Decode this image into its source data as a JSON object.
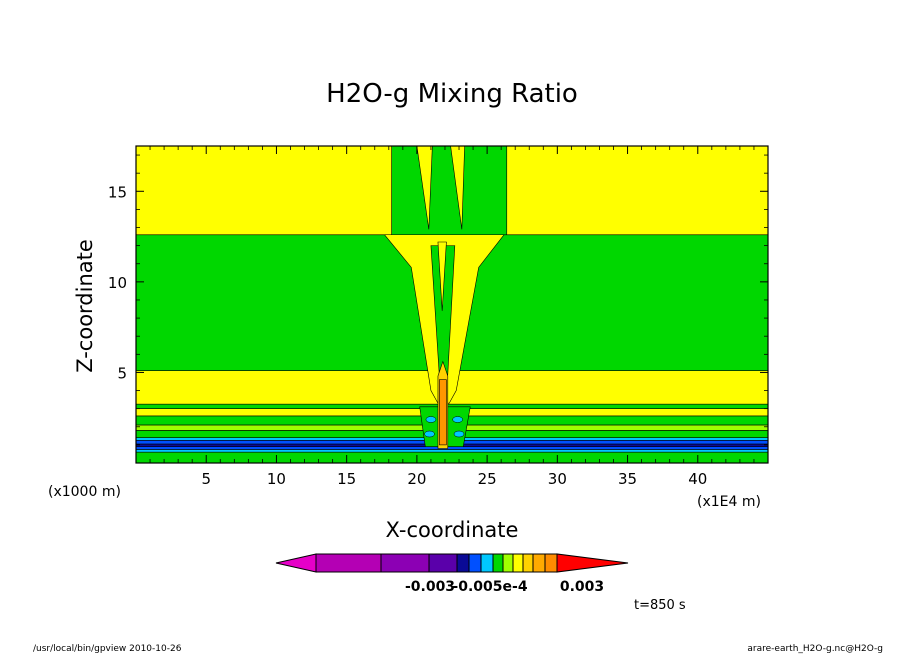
{
  "chart_data": {
    "type": "heatmap",
    "title": "H2O-g Mixing Ratio",
    "xlabel": "X-coordinate",
    "ylabel": "Z-coordinate",
    "x_scale_note": "(x1E4 m)",
    "y_scale_note": "(x1000 m)",
    "xlim": [
      0,
      45
    ],
    "ylim": [
      0,
      17.5
    ],
    "x_ticks": [
      {
        "value": 5,
        "label": "5"
      },
      {
        "value": 10,
        "label": "10"
      },
      {
        "value": 15,
        "label": "15"
      },
      {
        "value": 20,
        "label": "20"
      },
      {
        "value": 25,
        "label": "25"
      },
      {
        "value": 30,
        "label": "30"
      },
      {
        "value": 35,
        "label": "35"
      },
      {
        "value": 40,
        "label": "40"
      }
    ],
    "y_ticks": [
      {
        "value": 5,
        "label": "5"
      },
      {
        "value": 10,
        "label": "10"
      },
      {
        "value": 15,
        "label": "15"
      }
    ],
    "background_color": "#ffff00",
    "bands": [
      {
        "z0": 0.0,
        "z1": 0.6,
        "color": "#00d700"
      },
      {
        "z0": 0.6,
        "z1": 0.75,
        "color": "#00c8ff"
      },
      {
        "z0": 0.75,
        "z1": 0.9,
        "color": "#0050ff"
      },
      {
        "z0": 0.9,
        "z1": 1.05,
        "color": "#0a0a96"
      },
      {
        "z0": 1.05,
        "z1": 1.25,
        "color": "#0050ff"
      },
      {
        "z0": 1.25,
        "z1": 1.4,
        "color": "#00c8ff"
      },
      {
        "z0": 1.4,
        "z1": 1.8,
        "color": "#00d700"
      },
      {
        "z0": 1.8,
        "z1": 2.1,
        "color": "#a0ff00"
      },
      {
        "z0": 2.1,
        "z1": 2.6,
        "color": "#00d700"
      },
      {
        "z0": 2.6,
        "z1": 3.0,
        "color": "#ffff00"
      },
      {
        "z0": 3.0,
        "z1": 3.25,
        "color": "#00d700"
      },
      {
        "z0": 3.25,
        "z1": 5.1,
        "color": "#ffff00"
      },
      {
        "z0": 5.1,
        "z1": 12.6,
        "color": "#00d700"
      },
      {
        "z0": 12.6,
        "z1": 17.5,
        "color": "#ffff00"
      }
    ],
    "features": [
      {
        "name": "upper-green-column",
        "color": "#00d700",
        "x_range": [
          18.2,
          26.4
        ],
        "z_range": [
          12.6,
          17.5
        ]
      },
      {
        "name": "central-yellow-plume",
        "color": "#ffff00",
        "x_range": [
          17.7,
          26.2
        ],
        "z_range": [
          3.2,
          12.6
        ]
      },
      {
        "name": "plume-core-green",
        "color": "#00d700",
        "x_range": [
          21.0,
          22.7
        ],
        "z_range": [
          3.2,
          12.6
        ]
      },
      {
        "name": "updraft-orange-core",
        "color": "#ff9600",
        "x_range": [
          21.5,
          22.2
        ],
        "z_range": [
          0.8,
          5.6
        ]
      }
    ],
    "colorbar": {
      "colors": [
        "#e600c8",
        "#b400b4",
        "#8c00b4",
        "#5a00aa",
        "#0a0a96",
        "#0050ff",
        "#00c8ff",
        "#00d700",
        "#a0ff00",
        "#ffff00",
        "#ffd200",
        "#ffaa00",
        "#ff8c00",
        "#ff0000"
      ],
      "tick_labels": [
        "-0.003",
        "-0.005e-4",
        "0.003"
      ]
    },
    "time_label": "t=850 s",
    "footer_left": "/usr/local/bin/gpview  2010-10-26",
    "footer_right": "arare-earth_H2O-g.nc@H2O-g"
  }
}
